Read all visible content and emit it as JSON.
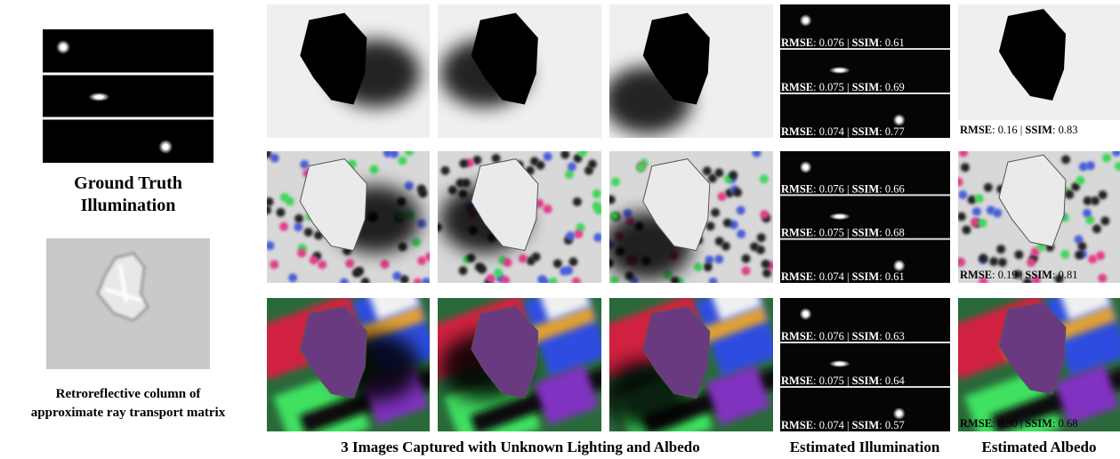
{
  "ground_truth": {
    "lines": [
      "Ground Truth",
      "Illumination"
    ]
  },
  "retro": {
    "lines": [
      "Retroreflective column of",
      "approximate ray transport matrix"
    ]
  },
  "metric_format": {
    "rmse": "RMSE",
    "ssim": "SSIM",
    "colon": ": ",
    "divider": " | "
  },
  "rows": [
    {
      "illumination": [
        {
          "rmse": "0.076",
          "ssim": "0.61"
        },
        {
          "rmse": "0.075",
          "ssim": "0.69"
        },
        {
          "rmse": "0.074",
          "ssim": "0.77"
        }
      ],
      "albedo": {
        "rmse": "0.16",
        "ssim": "0.83"
      }
    },
    {
      "illumination": [
        {
          "rmse": "0.076",
          "ssim": "0.66"
        },
        {
          "rmse": "0.075",
          "ssim": "0.68"
        },
        {
          "rmse": "0.074",
          "ssim": "0.61"
        }
      ],
      "albedo": {
        "rmse": "0.19",
        "ssim": "0.81"
      }
    },
    {
      "illumination": [
        {
          "rmse": "0.076",
          "ssim": "0.63"
        },
        {
          "rmse": "0.075",
          "ssim": "0.64"
        },
        {
          "rmse": "0.074",
          "ssim": "0.57"
        }
      ],
      "albedo": {
        "rmse": "0.30",
        "ssim": "0.68"
      }
    }
  ],
  "captions": {
    "captured": "3 Images Captured with Unknown Lighting and Albedo",
    "illumination": "Estimated Illumination",
    "albedo": "Estimated Albedo"
  }
}
